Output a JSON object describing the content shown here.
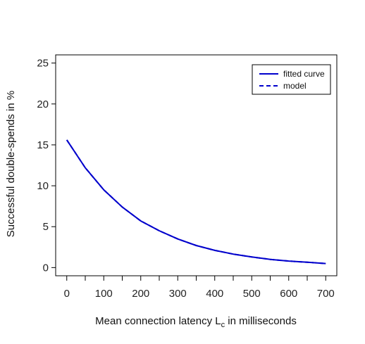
{
  "chart_data": {
    "type": "line",
    "xlabel": "Mean connection latency L",
    "xlabel_sub": "c",
    "xlabel_suffix": " in milliseconds",
    "ylabel": "Successful double-spends in %",
    "xlim": [
      -30,
      730
    ],
    "ylim": [
      -1,
      26
    ],
    "xticks": [
      0,
      100,
      200,
      300,
      400,
      500,
      600,
      700
    ],
    "xminor": [
      50,
      150,
      250,
      350,
      450,
      550,
      650
    ],
    "yticks": [
      0,
      5,
      10,
      15,
      20,
      25
    ],
    "legend": {
      "position": "top-right",
      "entries": [
        {
          "label": "fitted curve",
          "style": "solid"
        },
        {
          "label": "model",
          "style": "dashed"
        }
      ]
    },
    "color": "#0000cc",
    "series": [
      {
        "name": "fitted curve",
        "style": "solid",
        "x": [
          0,
          50,
          100,
          150,
          200,
          250,
          300,
          350,
          400,
          450,
          500,
          550,
          600,
          650,
          700
        ],
        "y": [
          15.6,
          12.2,
          9.5,
          7.4,
          5.7,
          4.5,
          3.5,
          2.7,
          2.1,
          1.65,
          1.3,
          1.0,
          0.8,
          0.65,
          0.5
        ]
      },
      {
        "name": "model",
        "style": "dashed",
        "x": [
          0,
          50,
          100,
          150,
          200,
          250,
          300,
          350,
          400,
          450,
          500,
          550,
          600,
          650,
          700
        ],
        "y": [
          15.6,
          12.2,
          9.5,
          7.4,
          5.7,
          4.5,
          3.5,
          2.7,
          2.1,
          1.65,
          1.3,
          1.0,
          0.8,
          0.65,
          0.5
        ]
      }
    ]
  }
}
